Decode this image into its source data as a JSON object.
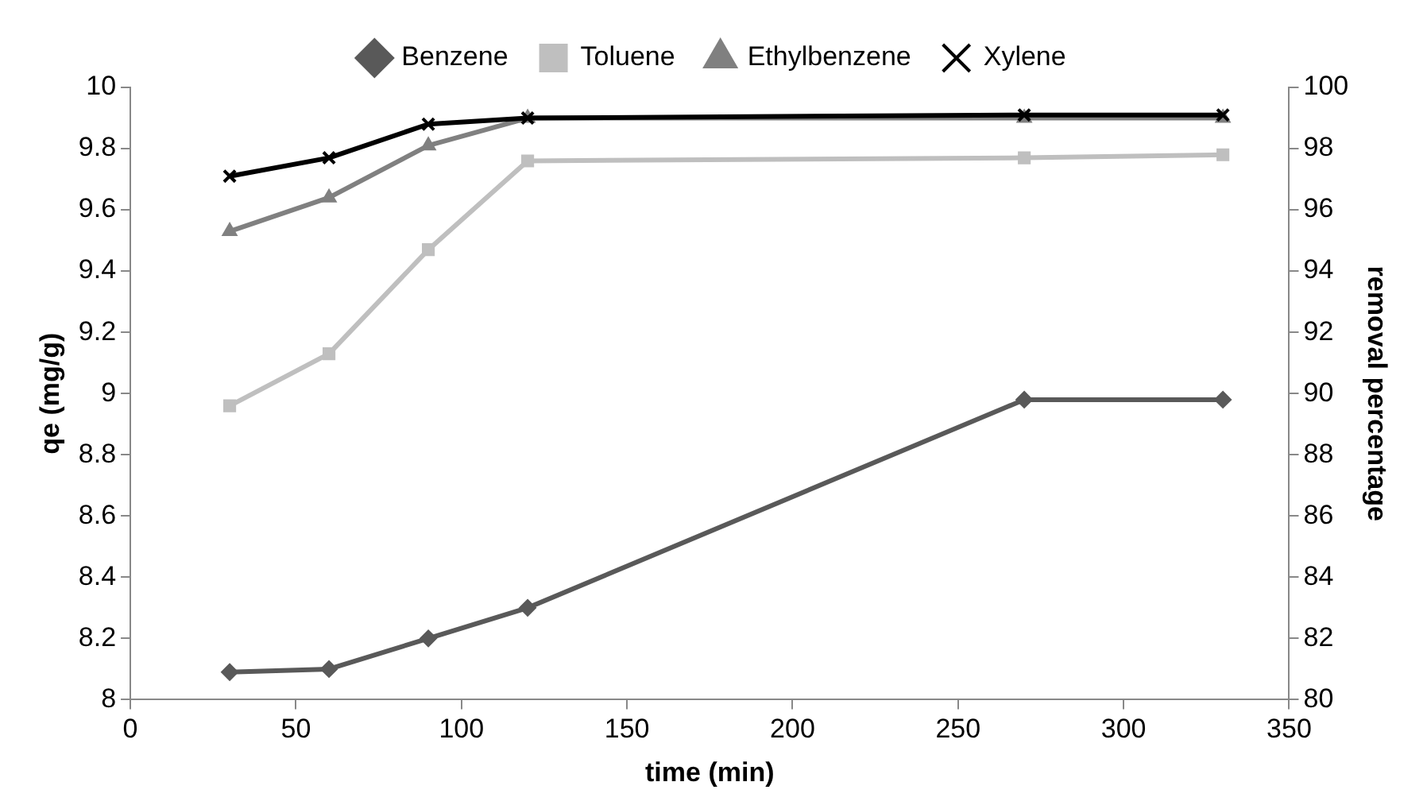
{
  "chart_data": {
    "type": "line",
    "xlabel": "time (min)",
    "ylabel": "qe (mg/g)",
    "y2label": "removal percentage",
    "x": [
      30,
      60,
      90,
      120,
      270,
      330
    ],
    "series": [
      {
        "name": "Benzene",
        "color": "#595959",
        "marker": "diamond",
        "values": [
          8.09,
          8.1,
          8.2,
          8.3,
          8.98,
          8.98
        ]
      },
      {
        "name": "Toluene",
        "color": "#bfbfbf",
        "marker": "square",
        "values": [
          8.96,
          9.13,
          9.47,
          9.76,
          9.77,
          9.78
        ]
      },
      {
        "name": "Ethylbenzene",
        "color": "#808080",
        "marker": "triangle",
        "values": [
          9.53,
          9.64,
          9.81,
          9.9,
          9.9,
          9.9
        ]
      },
      {
        "name": "Xylene",
        "color": "#000000",
        "marker": "cross",
        "values": [
          9.71,
          9.77,
          9.88,
          9.9,
          9.91,
          9.91
        ]
      }
    ],
    "xlim": [
      0,
      350
    ],
    "xticks": [
      0,
      50,
      100,
      150,
      200,
      250,
      300,
      350
    ],
    "ylim": [
      8,
      10
    ],
    "yticks": [
      8,
      8.2,
      8.4,
      8.6,
      8.8,
      9,
      9.2,
      9.4,
      9.6,
      9.8,
      10
    ],
    "y2lim": [
      80,
      100
    ],
    "y2ticks": [
      80,
      82,
      84,
      86,
      88,
      90,
      92,
      94,
      96,
      98,
      100
    ],
    "legend": "top",
    "grid": false
  }
}
